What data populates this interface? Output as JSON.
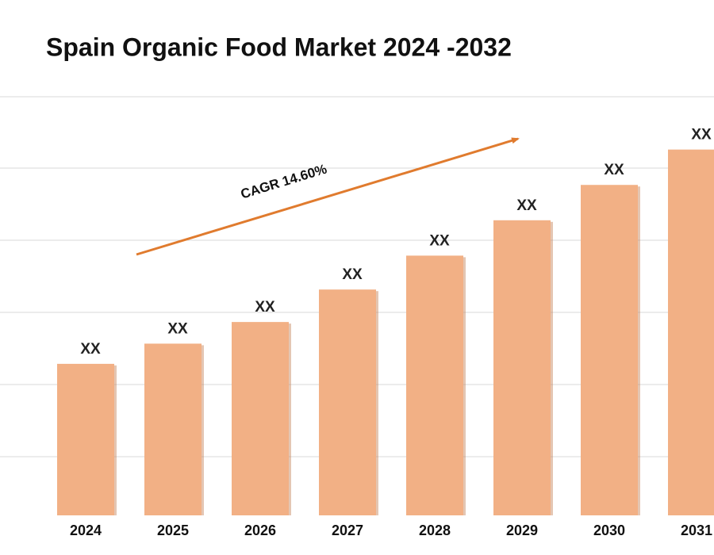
{
  "chart_data": {
    "type": "bar",
    "title": "Spain Organic Food Market 2024 -2032",
    "categories": [
      "2024",
      "2025",
      "2026",
      "2027",
      "2028",
      "2029",
      "2030",
      "2031"
    ],
    "values": [
      2.1,
      2.38,
      2.68,
      3.13,
      3.6,
      4.09,
      4.58,
      5.07
    ],
    "value_labels": [
      "XX",
      "XX",
      "XX",
      "XX",
      "XX",
      "XX",
      "XX",
      "XX"
    ],
    "color": "#f2b085",
    "ylim": [
      0,
      5.5
    ],
    "annotation": "CAGR 14.60%"
  }
}
